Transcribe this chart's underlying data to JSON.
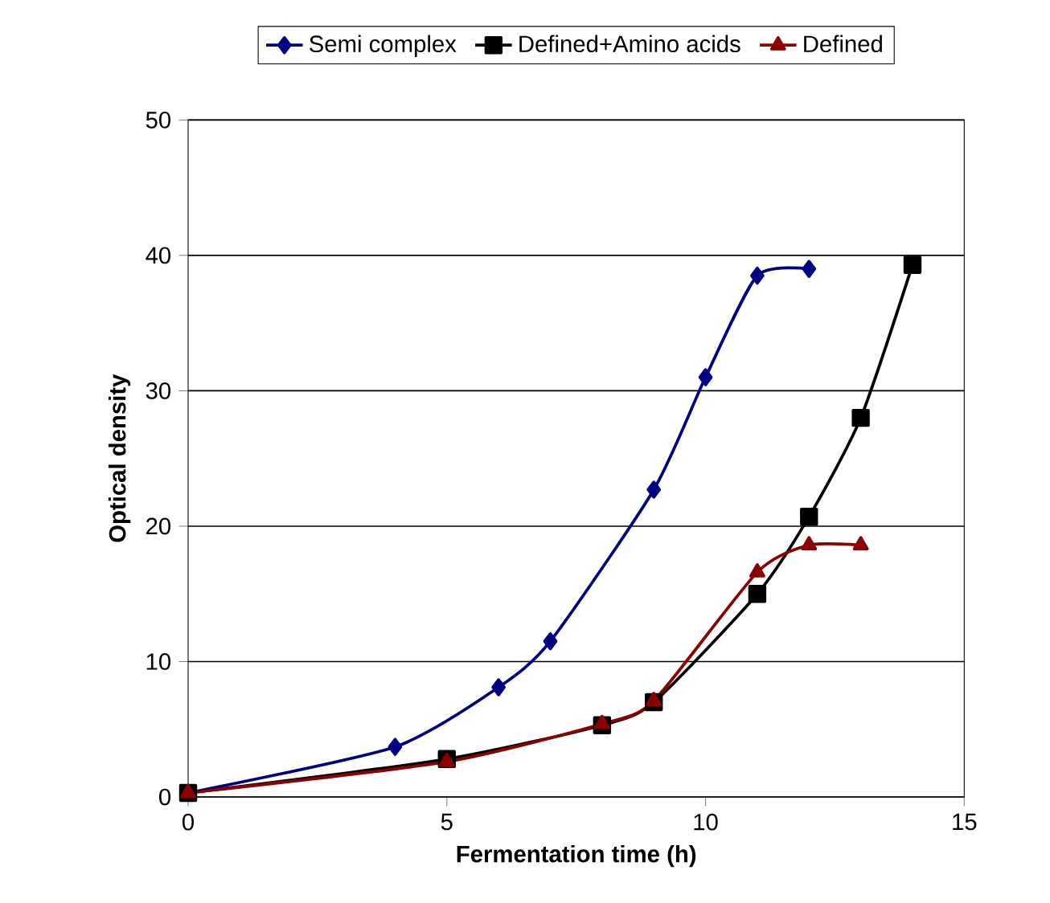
{
  "chart_data": {
    "type": "line",
    "xlabel": "Fermentation time (h)",
    "ylabel": "Optical density",
    "xlim": [
      0,
      15
    ],
    "xticks": [
      0,
      5,
      10,
      15
    ],
    "ylim": [
      0,
      50
    ],
    "yticks": [
      0,
      10,
      20,
      30,
      40,
      50
    ],
    "grid": "y",
    "legend": "top",
    "series": [
      {
        "name": "Semi complex",
        "color": "#000080",
        "marker": "diamond",
        "x": [
          0,
          4,
          6,
          7,
          9,
          10,
          11,
          12
        ],
        "values": [
          0.3,
          3.7,
          8.1,
          11.5,
          22.7,
          31,
          38.5,
          39
        ]
      },
      {
        "name": "Defined+Amino acids",
        "color": "#000000",
        "marker": "square",
        "x": [
          0,
          5,
          8,
          9,
          11,
          12,
          13,
          14
        ],
        "values": [
          0.3,
          2.8,
          5.3,
          7,
          15,
          20.7,
          28,
          39.3
        ]
      },
      {
        "name": "Defined",
        "color": "#8b0000",
        "marker": "triangle",
        "x": [
          0,
          5,
          8,
          9,
          11,
          12,
          13
        ],
        "values": [
          0.3,
          2.6,
          5.4,
          7.1,
          16.6,
          18.6,
          18.6
        ]
      }
    ]
  }
}
